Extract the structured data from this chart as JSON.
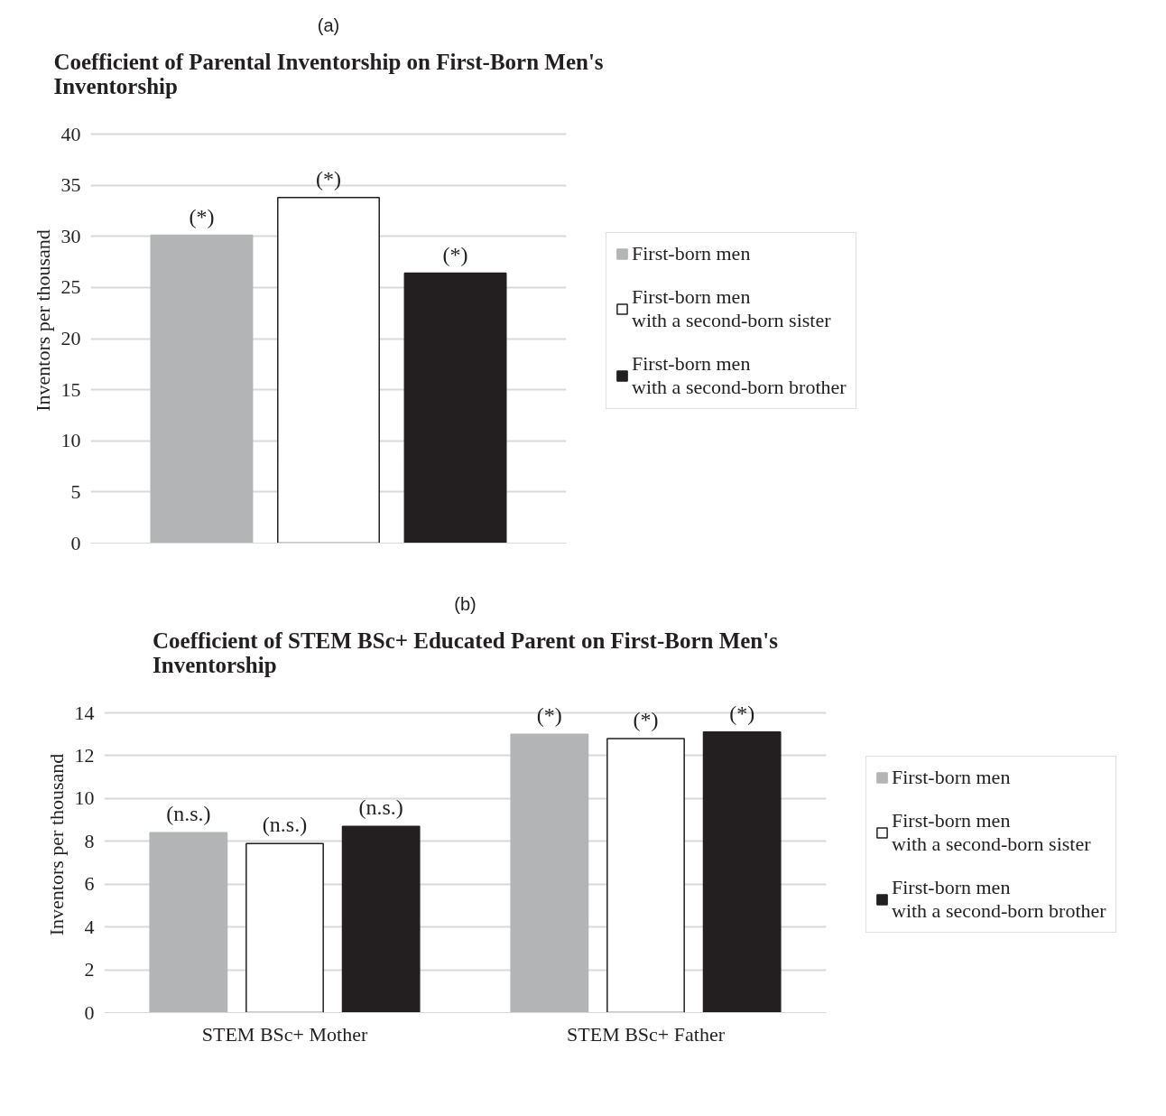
{
  "chart_data": [
    {
      "type": "bar",
      "annotations": [
        "(a)"
      ],
      "title": "Coefficient of Parental Inventorship on First-Born Men's\nInventorship",
      "ylabel": "Inventors per thousand",
      "categories": [
        null
      ],
      "series": [
        {
          "name": "First-born men",
          "color": "#b3b4b6",
          "values": [
            30.1
          ],
          "value_labels": [
            "(*)"
          ]
        },
        {
          "name": "First-born men\nwith a second-born sister",
          "color": "#ffffff",
          "values": [
            33.8
          ],
          "value_labels": [
            "(*)"
          ]
        },
        {
          "name": "First-born men\nwith a second-born brother",
          "color": "#231f20",
          "values": [
            26.4
          ],
          "value_labels": [
            "(*)"
          ]
        }
      ],
      "ylim": [
        0,
        40
      ],
      "yticks": [
        0,
        5,
        10,
        15,
        20,
        25,
        30,
        35,
        40
      ],
      "grid": "y",
      "legend": "right"
    },
    {
      "type": "bar",
      "annotations": [
        "(b)"
      ],
      "title": "Coefficient of STEM BSc+ Educated Parent on First-Born Men's\nInventorship",
      "ylabel": "Inventors per thousand",
      "categories": [
        "STEM BSc+ Mother",
        "STEM BSc+ Father"
      ],
      "series": [
        {
          "name": "First-born men",
          "color": "#b3b4b6",
          "values": [
            8.4,
            13.0
          ],
          "value_labels": [
            "(n.s.)",
            "(*)"
          ]
        },
        {
          "name": "First-born men\nwith a second-born sister",
          "color": "#ffffff",
          "values": [
            7.9,
            12.8
          ],
          "value_labels": [
            "(n.s.)",
            "(*)"
          ]
        },
        {
          "name": "First-born men\nwith a second-born brother",
          "color": "#231f20",
          "values": [
            8.7,
            13.1
          ],
          "value_labels": [
            "(n.s.)",
            "(*)"
          ]
        }
      ],
      "ylim": [
        0,
        14
      ],
      "yticks": [
        0,
        2,
        4,
        6,
        8,
        10,
        12,
        14
      ],
      "grid": "y",
      "legend": "right"
    }
  ]
}
